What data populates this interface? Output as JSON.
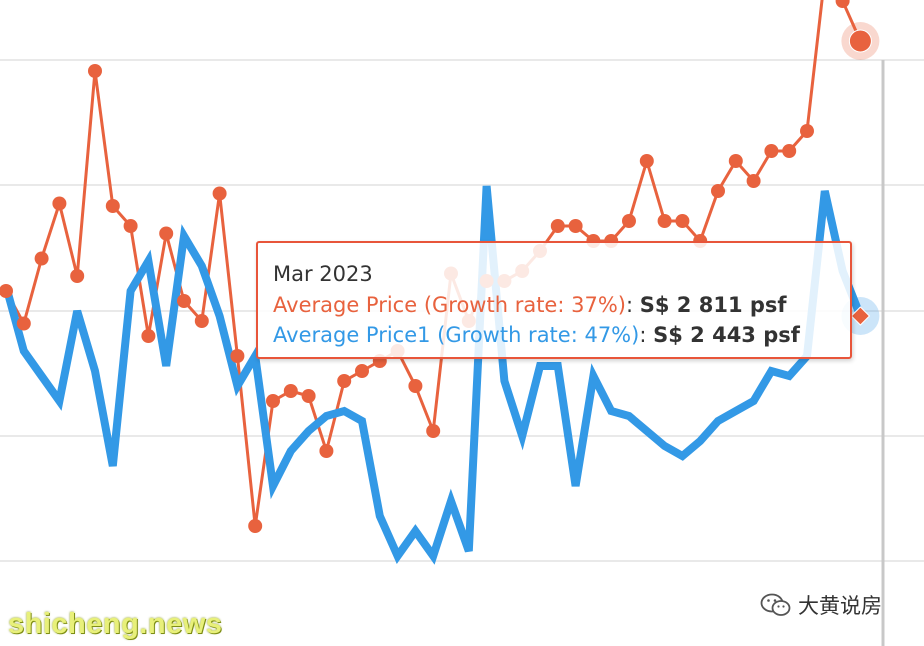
{
  "chart_data": {
    "type": "line",
    "grid": true,
    "series": [
      {
        "name": "Average Price",
        "color": "#e8623e",
        "marker": "circle",
        "values": [
          2040,
          1975,
          2105,
          2215,
          2070,
          2480,
          2210,
          2170,
          1950,
          2155,
          2020,
          1980,
          2235,
          1910,
          1570,
          1820,
          1840,
          1830,
          1720,
          1860,
          1880,
          1900,
          1920,
          1850,
          1760,
          2075,
          1980,
          2060,
          2060,
          2080,
          2120,
          2170,
          2170,
          2140,
          2140,
          2180,
          2300,
          2180,
          2180,
          2140,
          2240,
          2300,
          2260,
          2320,
          2320,
          2360,
          2670,
          2620,
          2540
        ]
      },
      {
        "name": "Average Price1",
        "color": "#3399e6",
        "marker": "diamond",
        "values": [
          2050,
          1920,
          1870,
          1820,
          2000,
          1880,
          1690,
          2040,
          2100,
          1890,
          2150,
          2090,
          1990,
          1850,
          1910,
          1650,
          1720,
          1760,
          1790,
          1800,
          1780,
          1590,
          1510,
          1560,
          1510,
          1620,
          1520,
          2250,
          1860,
          1750,
          1890,
          1890,
          1650,
          1870,
          1800,
          1790,
          1760,
          1730,
          1710,
          1740,
          1780,
          1800,
          1820,
          1880,
          1870,
          1910,
          2240,
          2080,
          1990
        ]
      }
    ]
  },
  "tooltip": {
    "title": "Mar 2023",
    "row1_label": "Average Price (Growth rate: 37%)",
    "row1_sep": ": ",
    "row1_value": "S$ 2 811 psf",
    "row2_label": "Average Price1 (Growth rate: 47%)",
    "row2_sep": ": ",
    "row2_value": "S$ 2 443 psf",
    "row1_color": "#e8623e",
    "row2_color": "#3399e6"
  },
  "watermark": {
    "site": "shicheng.news",
    "account": "大黄说房"
  }
}
